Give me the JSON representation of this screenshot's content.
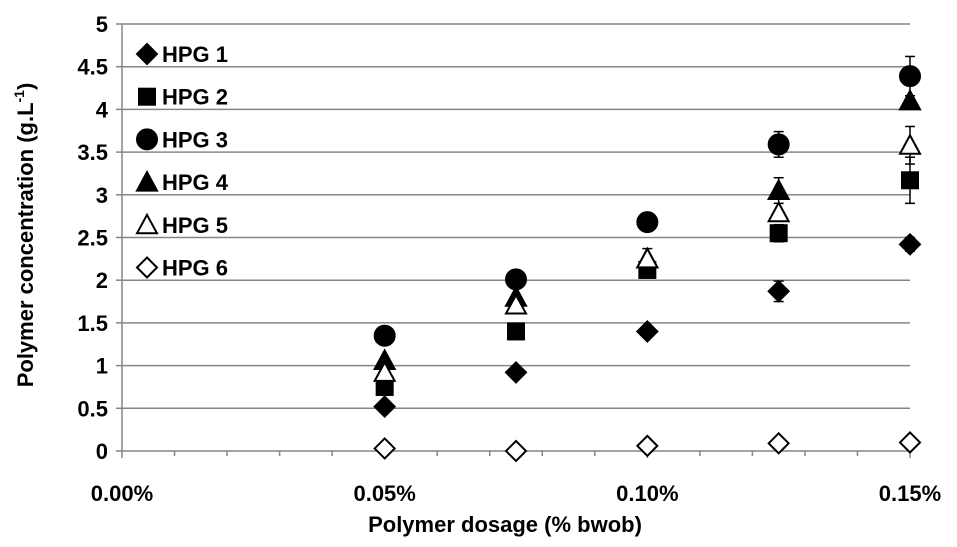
{
  "chart_data": {
    "type": "scatter",
    "title": "",
    "xlabel": "Polymer dosage (% bwob)",
    "ylabel_main": "Polymer concentration (g.L",
    "ylabel_sup": "-1",
    "ylabel_end": ")",
    "x_ticks": [
      "0.00%",
      "0.05%",
      "0.10%",
      "0.15%"
    ],
    "x_tick_values": [
      0,
      0.05,
      0.1,
      0.15
    ],
    "xlim": [
      0,
      0.15
    ],
    "y_ticks": [
      "0",
      "0.5",
      "1",
      "1.5",
      "2",
      "2.5",
      "3",
      "3.5",
      "4",
      "4.5",
      "5"
    ],
    "ylim": [
      0,
      5
    ],
    "grid": "horizontal",
    "legend_position": "top-left",
    "x": [
      0.05,
      0.075,
      0.1,
      0.125,
      0.15
    ],
    "series": [
      {
        "name": "HPG 1",
        "marker": "diamond-filled",
        "values": [
          0.52,
          0.92,
          1.4,
          1.87,
          2.42
        ],
        "err": [
          0.0,
          0.0,
          0.06,
          0.12,
          0.08
        ]
      },
      {
        "name": "HPG 2",
        "marker": "square-filled",
        "values": [
          0.75,
          1.4,
          2.12,
          2.55,
          3.17
        ],
        "err": [
          0.0,
          0.0,
          0.0,
          0.1,
          0.27
        ]
      },
      {
        "name": "HPG 3",
        "marker": "circle-filled",
        "values": [
          1.35,
          2.01,
          2.68,
          3.59,
          4.39
        ],
        "err": [
          0.0,
          0.0,
          0.0,
          0.15,
          0.23
        ]
      },
      {
        "name": "HPG 4",
        "marker": "triangle-filled",
        "values": [
          1.06,
          1.8,
          2.25,
          3.05,
          4.1
        ],
        "err": [
          0.0,
          0.0,
          0.0,
          0.15,
          0.0
        ]
      },
      {
        "name": "HPG 5",
        "marker": "triangle-open",
        "values": [
          0.92,
          1.71,
          2.25,
          2.79,
          3.58
        ],
        "err": [
          0.0,
          0.0,
          0.12,
          0.0,
          0.22
        ]
      },
      {
        "name": "HPG 6",
        "marker": "diamond-open",
        "values": [
          0.03,
          0.0,
          0.06,
          0.09,
          0.1
        ],
        "err": [
          0.0,
          0.0,
          0.0,
          0.0,
          0.0
        ]
      }
    ],
    "colors": {
      "marker": "#000000",
      "gridline": "#868686",
      "axis": "#868686",
      "background": "#ffffff"
    }
  }
}
